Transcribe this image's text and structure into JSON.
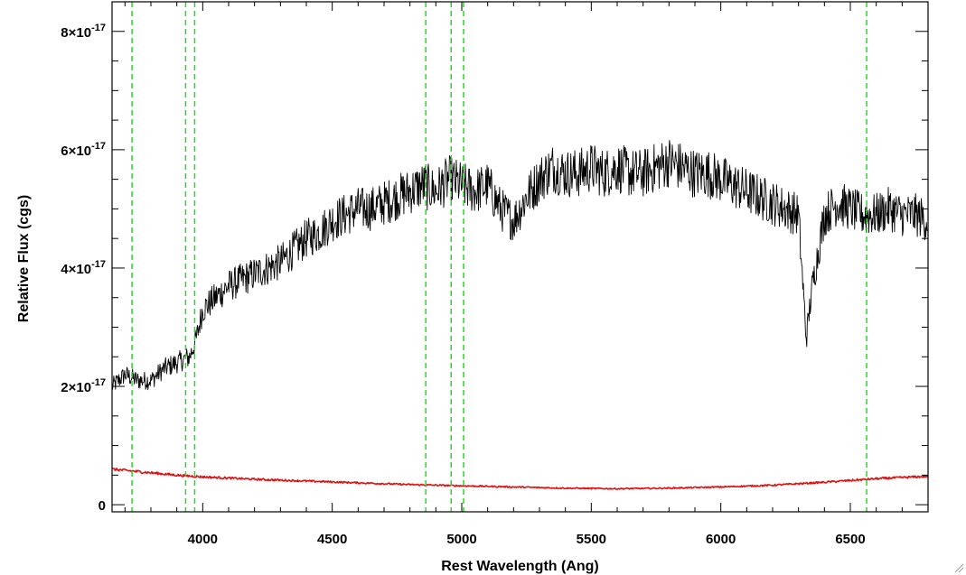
{
  "chart_data": {
    "type": "line",
    "xlabel": "Rest Wavelength (Ang)",
    "ylabel": "Relative Flux (cgs)",
    "xlim": [
      3650,
      6800
    ],
    "ylim": [
      -1.2e-18,
      8.5e-17
    ],
    "x_ticks": [
      {
        "value": 4000,
        "label": "4000"
      },
      {
        "value": 4500,
        "label": "4500"
      },
      {
        "value": 5000,
        "label": "5000"
      },
      {
        "value": 5500,
        "label": "5500"
      },
      {
        "value": 6000,
        "label": "6000"
      },
      {
        "value": 6500,
        "label": "6500"
      }
    ],
    "y_ticks": [
      {
        "value": 0,
        "mantissa": "0",
        "exponent": ""
      },
      {
        "value": 2e-17,
        "mantissa": "2×10",
        "exponent": "-17"
      },
      {
        "value": 4e-17,
        "mantissa": "4×10",
        "exponent": "-17"
      },
      {
        "value": 6e-17,
        "mantissa": "6×10",
        "exponent": "-17"
      },
      {
        "value": 8e-17,
        "mantissa": "8×10",
        "exponent": "-17"
      }
    ],
    "vertical_lines": {
      "color": "#22dd22",
      "style": "dashed",
      "x": [
        3727,
        3934,
        3969,
        4861,
        4959,
        5007,
        6563
      ]
    },
    "series": [
      {
        "role": "spectrum",
        "color": "#000000",
        "x": [
          3650,
          3700,
          3750,
          3800,
          3850,
          3900,
          3950,
          3975,
          4000,
          4050,
          4100,
          4150,
          4200,
          4250,
          4300,
          4350,
          4400,
          4450,
          4500,
          4550,
          4600,
          4650,
          4700,
          4750,
          4800,
          4850,
          4900,
          4950,
          5000,
          5050,
          5100,
          5150,
          5200,
          5250,
          5300,
          5350,
          5400,
          5450,
          5500,
          5550,
          5600,
          5650,
          5700,
          5750,
          5800,
          5850,
          5900,
          5950,
          6000,
          6050,
          6100,
          6150,
          6200,
          6250,
          6300,
          6330,
          6350,
          6400,
          6450,
          6500,
          6550,
          6600,
          6650,
          6700,
          6750,
          6800
        ],
        "y": [
          2e-17,
          2.2e-17,
          2.1e-17,
          2.1e-17,
          2.3e-17,
          2.4e-17,
          2.5e-17,
          2.8e-17,
          3.3e-17,
          3.5e-17,
          3.7e-17,
          3.8e-17,
          3.9e-17,
          4e-17,
          4.1e-17,
          4.3e-17,
          4.5e-17,
          4.6e-17,
          4.8e-17,
          4.9e-17,
          5e-17,
          5e-17,
          5.1e-17,
          5.2e-17,
          5.3e-17,
          5.4e-17,
          5.3e-17,
          5.5e-17,
          5.4e-17,
          5.3e-17,
          5.4e-17,
          5e-17,
          4.8e-17,
          5.2e-17,
          5.5e-17,
          5.7e-17,
          5.6e-17,
          5.6e-17,
          5.7e-17,
          5.6e-17,
          5.7e-17,
          5.6e-17,
          5.6e-17,
          5.7e-17,
          5.8e-17,
          5.7e-17,
          5.6e-17,
          5.6e-17,
          5.5e-17,
          5.4e-17,
          5.3e-17,
          5.2e-17,
          5.1e-17,
          5e-17,
          4.9e-17,
          2.8e-17,
          3.6e-17,
          4.9e-17,
          5.1e-17,
          5e-17,
          4.9e-17,
          4.9e-17,
          5e-17,
          4.9e-17,
          4.9e-17,
          4.8e-17
        ]
      },
      {
        "role": "error",
        "color": "#e01010",
        "x": [
          3650,
          3800,
          3900,
          4000,
          4200,
          4400,
          4600,
          4800,
          5000,
          5200,
          5400,
          5600,
          5800,
          6000,
          6200,
          6400,
          6600,
          6800
        ],
        "y": [
          6e-18,
          5.4e-18,
          5e-18,
          4.7e-18,
          4.3e-18,
          4e-18,
          3.7e-18,
          3.4e-18,
          3.2e-18,
          3e-18,
          2.8e-18,
          2.7e-18,
          2.8e-18,
          3e-18,
          3.3e-18,
          3.8e-18,
          4.4e-18,
          4.8e-18
        ]
      }
    ],
    "grid": false,
    "legend": "none"
  }
}
